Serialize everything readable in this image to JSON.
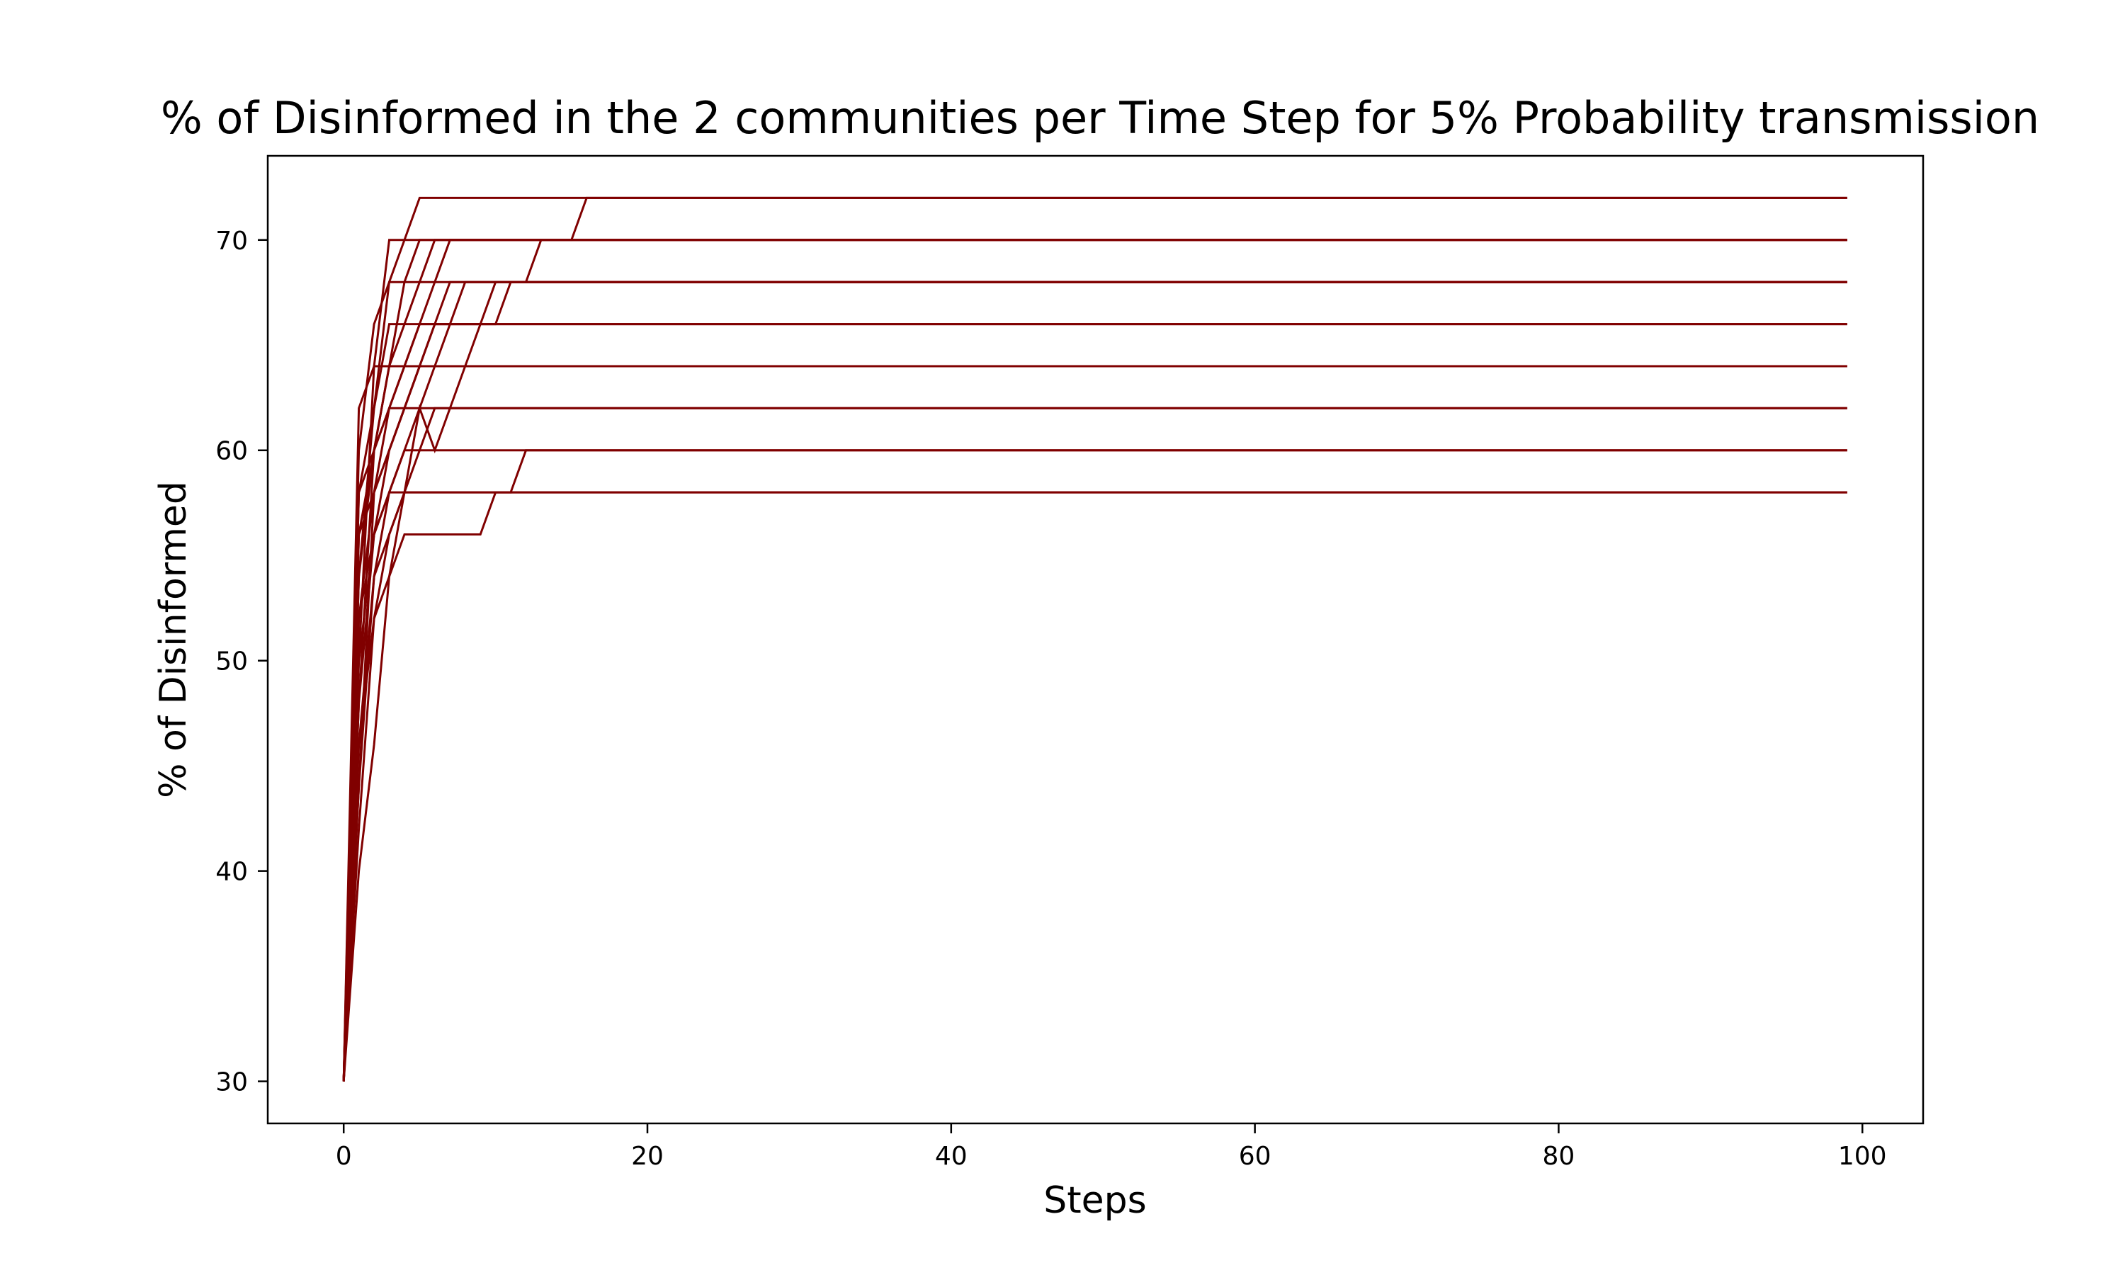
{
  "chart_data": {
    "type": "line",
    "title": "% of Disinformed in the 2 communities per Time Step for 5% Probability transmission",
    "xlabel": "Steps",
    "ylabel": "% of Disinformed",
    "xlim": [
      -5,
      104
    ],
    "ylim": [
      28,
      74
    ],
    "xticks": [
      0,
      20,
      40,
      60,
      80,
      100
    ],
    "yticks": [
      30,
      40,
      50,
      60,
      70
    ],
    "grid": false,
    "legend": false,
    "line_color": "#800000",
    "x_last": 99,
    "series": [
      {
        "points": [
          [
            0,
            30
          ],
          [
            1,
            54
          ],
          [
            2,
            60
          ],
          [
            3,
            64
          ],
          [
            4,
            68
          ],
          [
            5,
            70
          ],
          [
            6,
            70
          ],
          [
            99,
            70
          ]
        ]
      },
      {
        "points": [
          [
            0,
            30
          ],
          [
            1,
            50
          ],
          [
            2,
            64
          ],
          [
            3,
            70
          ],
          [
            4,
            70
          ],
          [
            99,
            70
          ]
        ]
      },
      {
        "points": [
          [
            0,
            30
          ],
          [
            1,
            58
          ],
          [
            2,
            62
          ],
          [
            3,
            68
          ],
          [
            4,
            70
          ],
          [
            5,
            72
          ],
          [
            99,
            72
          ]
        ]
      },
      {
        "points": [
          [
            0,
            30
          ],
          [
            1,
            48
          ],
          [
            2,
            56
          ],
          [
            3,
            58
          ],
          [
            4,
            60
          ],
          [
            5,
            62
          ],
          [
            6,
            64
          ],
          [
            7,
            66
          ],
          [
            8,
            68
          ],
          [
            99,
            68
          ]
        ]
      },
      {
        "points": [
          [
            0,
            30
          ],
          [
            1,
            60
          ],
          [
            2,
            66
          ],
          [
            3,
            68
          ],
          [
            4,
            68
          ],
          [
            99,
            68
          ]
        ]
      },
      {
        "points": [
          [
            0,
            30
          ],
          [
            1,
            44
          ],
          [
            2,
            58
          ],
          [
            3,
            62
          ],
          [
            4,
            64
          ],
          [
            5,
            66
          ],
          [
            99,
            66
          ]
        ]
      },
      {
        "points": [
          [
            0,
            30
          ],
          [
            1,
            62
          ],
          [
            2,
            64
          ],
          [
            3,
            64
          ],
          [
            99,
            64
          ]
        ]
      },
      {
        "points": [
          [
            0,
            30
          ],
          [
            1,
            40
          ],
          [
            2,
            46
          ],
          [
            3,
            54
          ],
          [
            4,
            56
          ],
          [
            5,
            56
          ],
          [
            6,
            56
          ],
          [
            7,
            56
          ],
          [
            8,
            56
          ],
          [
            9,
            56
          ],
          [
            10,
            58
          ],
          [
            99,
            58
          ]
        ]
      },
      {
        "points": [
          [
            0,
            30
          ],
          [
            1,
            52
          ],
          [
            2,
            58
          ],
          [
            3,
            60
          ],
          [
            4,
            62
          ],
          [
            5,
            62
          ],
          [
            6,
            62
          ],
          [
            7,
            62
          ],
          [
            8,
            62
          ],
          [
            9,
            62
          ],
          [
            10,
            62
          ],
          [
            11,
            62
          ],
          [
            12,
            62
          ],
          [
            99,
            62
          ]
        ]
      },
      {
        "points": [
          [
            0,
            30
          ],
          [
            1,
            46
          ],
          [
            2,
            54
          ],
          [
            3,
            58
          ],
          [
            4,
            58
          ],
          [
            5,
            58
          ],
          [
            6,
            58
          ],
          [
            7,
            58
          ],
          [
            8,
            58
          ],
          [
            9,
            58
          ],
          [
            10,
            58
          ],
          [
            11,
            58
          ],
          [
            12,
            60
          ],
          [
            99,
            60
          ]
        ]
      },
      {
        "points": [
          [
            0,
            30
          ],
          [
            1,
            56
          ],
          [
            2,
            60
          ],
          [
            3,
            64
          ],
          [
            4,
            66
          ],
          [
            5,
            68
          ],
          [
            6,
            70
          ],
          [
            7,
            70
          ],
          [
            8,
            70
          ],
          [
            9,
            70
          ],
          [
            10,
            70
          ],
          [
            11,
            70
          ],
          [
            12,
            70
          ],
          [
            13,
            70
          ],
          [
            14,
            70
          ],
          [
            15,
            70
          ],
          [
            16,
            72
          ],
          [
            99,
            72
          ]
        ]
      },
      {
        "points": [
          [
            0,
            30
          ],
          [
            1,
            50
          ],
          [
            2,
            56
          ],
          [
            3,
            60
          ],
          [
            4,
            62
          ],
          [
            5,
            64
          ],
          [
            6,
            66
          ],
          [
            7,
            68
          ],
          [
            8,
            68
          ],
          [
            9,
            68
          ],
          [
            10,
            68
          ],
          [
            11,
            68
          ],
          [
            12,
            68
          ],
          [
            13,
            70
          ],
          [
            99,
            70
          ]
        ]
      },
      {
        "points": [
          [
            0,
            30
          ],
          [
            1,
            54
          ],
          [
            2,
            62
          ],
          [
            3,
            66
          ],
          [
            4,
            66
          ],
          [
            5,
            66
          ],
          [
            6,
            66
          ],
          [
            7,
            66
          ],
          [
            8,
            66
          ],
          [
            9,
            66
          ],
          [
            10,
            66
          ],
          [
            11,
            68
          ],
          [
            99,
            68
          ]
        ]
      },
      {
        "points": [
          [
            0,
            30
          ],
          [
            1,
            42
          ],
          [
            2,
            52
          ],
          [
            3,
            56
          ],
          [
            4,
            58
          ],
          [
            5,
            62
          ],
          [
            6,
            60
          ],
          [
            7,
            62
          ],
          [
            8,
            64
          ],
          [
            9,
            66
          ],
          [
            10,
            68
          ],
          [
            99,
            68
          ]
        ]
      },
      {
        "points": [
          [
            0,
            30
          ],
          [
            1,
            58
          ],
          [
            2,
            60
          ],
          [
            3,
            62
          ],
          [
            4,
            64
          ],
          [
            5,
            66
          ],
          [
            6,
            68
          ],
          [
            7,
            70
          ],
          [
            99,
            70
          ]
        ]
      },
      {
        "points": [
          [
            0,
            30
          ],
          [
            1,
            48
          ],
          [
            2,
            60
          ],
          [
            3,
            62
          ],
          [
            4,
            62
          ],
          [
            5,
            64
          ],
          [
            6,
            66
          ],
          [
            99,
            66
          ]
        ]
      },
      {
        "points": [
          [
            0,
            30
          ],
          [
            1,
            56
          ],
          [
            2,
            58
          ],
          [
            3,
            60
          ],
          [
            4,
            62
          ],
          [
            5,
            64
          ],
          [
            6,
            64
          ],
          [
            99,
            64
          ]
        ]
      },
      {
        "points": [
          [
            0,
            30
          ],
          [
            1,
            44
          ],
          [
            2,
            54
          ],
          [
            3,
            56
          ],
          [
            4,
            58
          ],
          [
            5,
            60
          ],
          [
            6,
            62
          ],
          [
            99,
            62
          ]
        ]
      },
      {
        "points": [
          [
            0,
            30
          ],
          [
            1,
            52
          ],
          [
            2,
            56
          ],
          [
            3,
            58
          ],
          [
            4,
            60
          ],
          [
            5,
            60
          ],
          [
            99,
            60
          ]
        ]
      },
      {
        "points": [
          [
            0,
            30
          ],
          [
            1,
            46
          ],
          [
            2,
            52
          ],
          [
            3,
            54
          ],
          [
            4,
            58
          ],
          [
            5,
            58
          ],
          [
            99,
            58
          ]
        ]
      }
    ]
  }
}
